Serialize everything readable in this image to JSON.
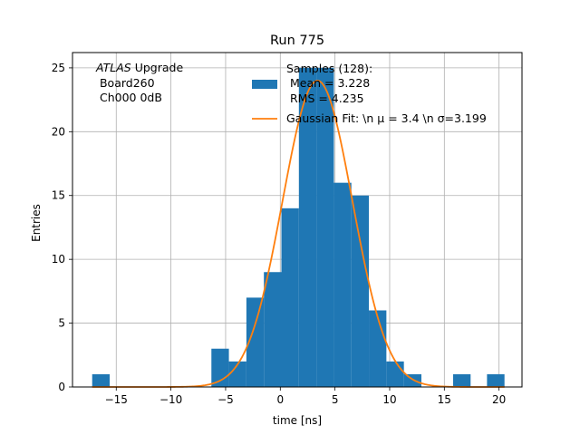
{
  "chart_data": {
    "type": "bar",
    "title": "Run 775",
    "xlabel": "time [ns]",
    "ylabel": "Entries",
    "xlim": [
      -19.0,
      22.1
    ],
    "ylim": [
      0,
      26.2
    ],
    "xticks": [
      -15,
      -10,
      -5,
      0,
      5,
      10,
      15,
      20
    ],
    "xtick_labels": [
      "−15",
      "−10",
      "−5",
      "0",
      "5",
      "10",
      "15",
      "20"
    ],
    "yticks": [
      0,
      5,
      10,
      15,
      20,
      25
    ],
    "ytick_labels": [
      "0",
      "5",
      "10",
      "15",
      "20",
      "25"
    ],
    "grid": true,
    "legend_position": "upper-right",
    "annotation": {
      "line1_italic": "ATLAS",
      "line1_rest": " Upgrade",
      "line2": " Board260",
      "line3": " Ch000 0dB"
    },
    "histogram": {
      "name_lines": [
        "Samples (128):",
        " Mean = 3.228",
        " RMS = 4.235"
      ],
      "color": "#1f77b4",
      "bins": [
        {
          "x0": -17.2,
          "x1": -15.6,
          "count": 1
        },
        {
          "x0": -6.3,
          "x1": -4.7,
          "count": 3
        },
        {
          "x0": -4.7,
          "x1": -3.1,
          "count": 2
        },
        {
          "x0": -3.1,
          "x1": -1.5,
          "count": 7
        },
        {
          "x0": -1.5,
          "x1": 0.1,
          "count": 9
        },
        {
          "x0": 0.1,
          "x1": 1.7,
          "count": 14
        },
        {
          "x0": 1.7,
          "x1": 3.3,
          "count": 25
        },
        {
          "x0": 3.3,
          "x1": 4.9,
          "count": 25
        },
        {
          "x0": 4.9,
          "x1": 6.5,
          "count": 16
        },
        {
          "x0": 6.5,
          "x1": 8.1,
          "count": 15
        },
        {
          "x0": 8.1,
          "x1": 9.7,
          "count": 6
        },
        {
          "x0": 9.7,
          "x1": 11.3,
          "count": 2
        },
        {
          "x0": 11.3,
          "x1": 12.9,
          "count": 1
        },
        {
          "x0": 15.8,
          "x1": 17.4,
          "count": 1
        },
        {
          "x0": 18.9,
          "x1": 20.5,
          "count": 1
        }
      ]
    },
    "fit": {
      "name": "Gaussian Fit: \\n μ = 3.4 \\n σ=3.199",
      "color": "#ff7f0e",
      "mu": 3.4,
      "sigma": 3.199,
      "amplitude": 24.0,
      "x_range": [
        -17.2,
        20.5
      ]
    }
  }
}
